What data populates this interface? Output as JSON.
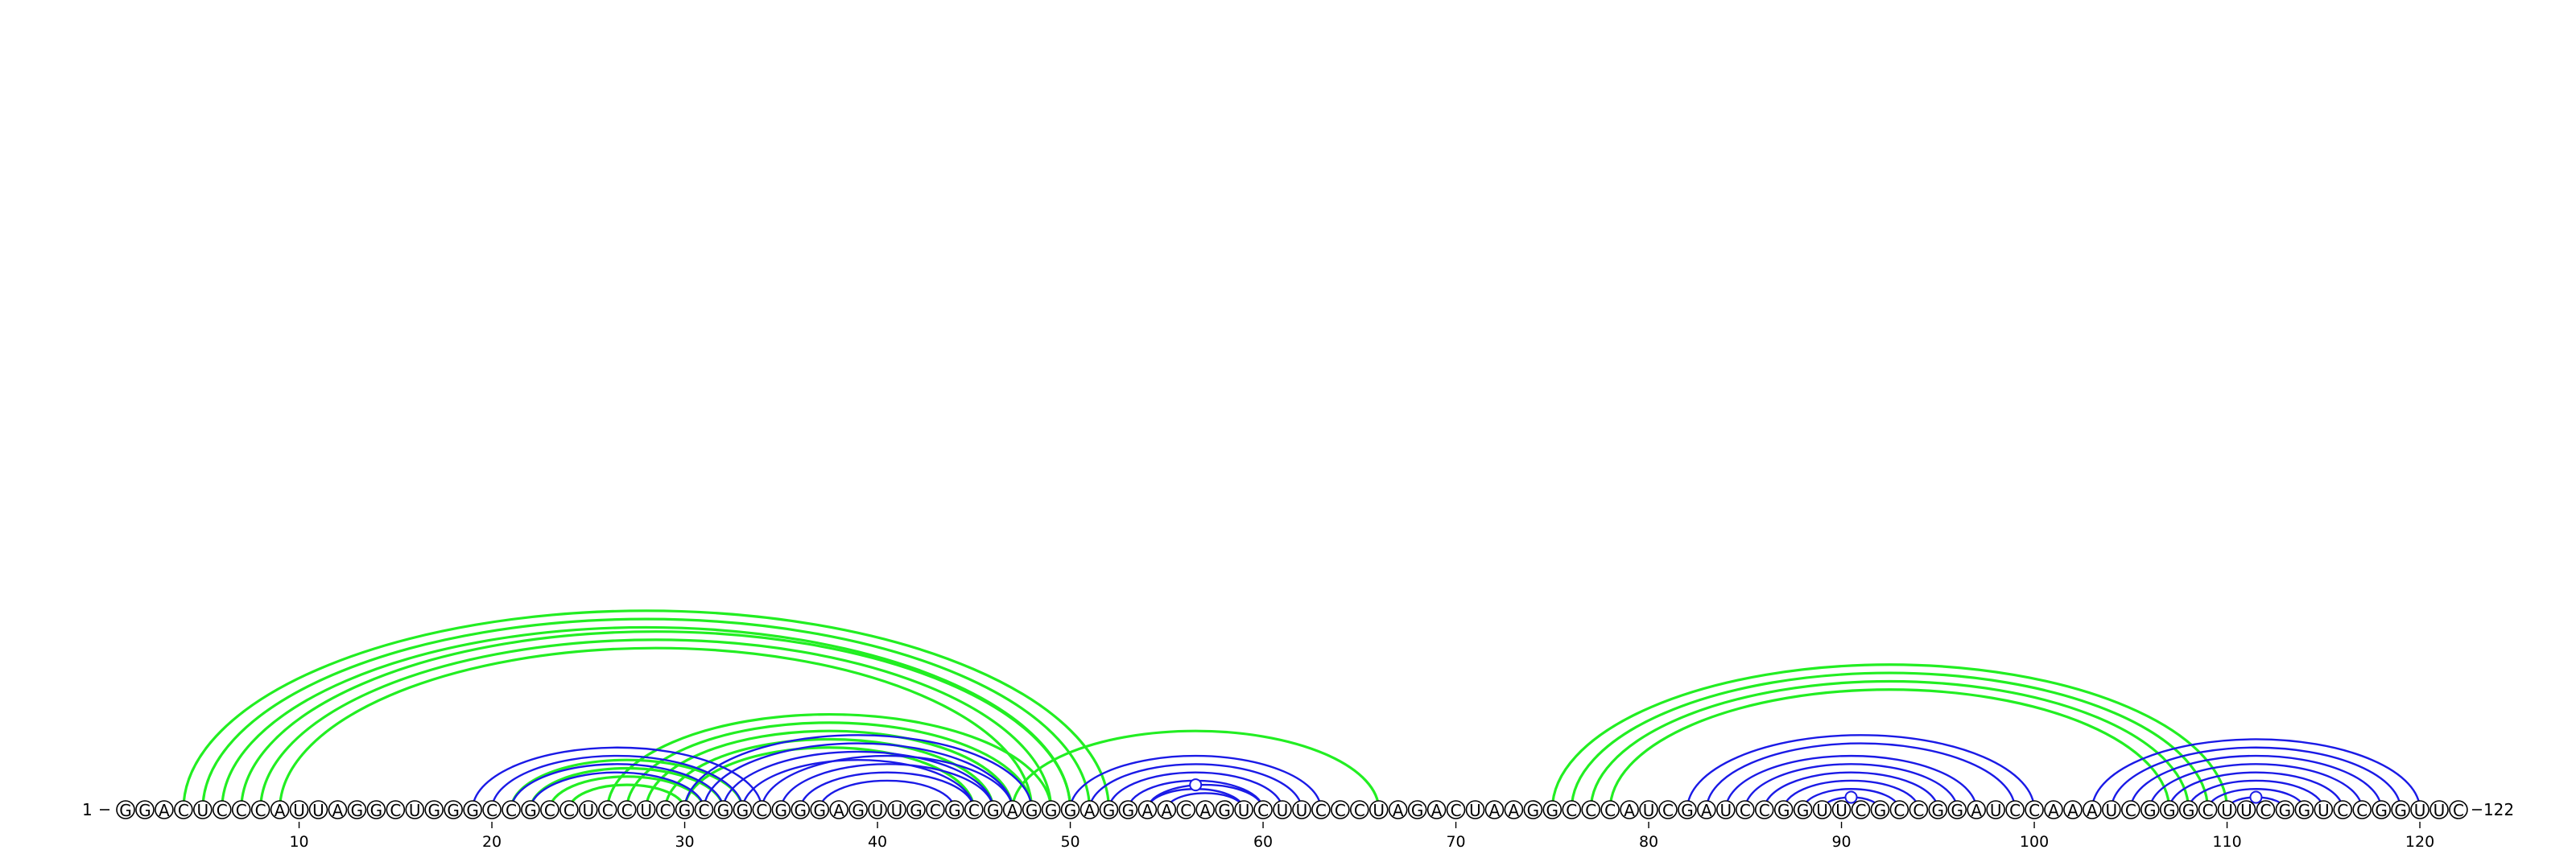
{
  "diagram": {
    "sequence": "GGACUCCCAUUAGGCUGGGCCGCCUCCUCGCGGCGGGAGUUGCGCGAGGGAGGAACAGUCUUCCCUAGACUAAGGCCCAUCGAUCCGGUUCGCCGGAUCCAAAUCGGGCUUCGGUCCGGUUC",
    "start_label": "1",
    "end_label": "122",
    "tick_labels": [
      "10",
      "20",
      "30",
      "40",
      "50",
      "60",
      "70",
      "80",
      "90",
      "100",
      "110",
      "120"
    ],
    "tick_positions": [
      10,
      20,
      30,
      40,
      50,
      60,
      70,
      80,
      90,
      100,
      110,
      120
    ],
    "colors": {
      "green": "#22ee22",
      "blue": "#1a1ae6"
    },
    "blue_helices": [
      {
        "i": 19,
        "j": 34,
        "len": 4
      },
      {
        "i": 30,
        "j": 48,
        "len": 4
      },
      {
        "i": 34,
        "j": 47,
        "len": 4
      },
      {
        "i": 50,
        "j": 63,
        "len": 5
      },
      {
        "i": 54,
        "j": 60,
        "len": 2
      },
      {
        "i": 82,
        "j": 100,
        "len": 2
      },
      {
        "i": 84,
        "j": 97,
        "len": 5
      },
      {
        "i": 89,
        "j": 92,
        "len": 1
      },
      {
        "i": 103,
        "j": 120,
        "len": 3
      },
      {
        "i": 106,
        "j": 117,
        "len": 4
      },
      {
        "i": 110,
        "j": 113,
        "len": 1
      }
    ],
    "green_helices": [
      {
        "i": 4,
        "j": 52,
        "len": 3
      },
      {
        "i": 7,
        "j": 50,
        "len": 3
      },
      {
        "i": 21,
        "j": 33,
        "len": 4
      },
      {
        "i": 26,
        "j": 49,
        "len": 5
      },
      {
        "i": 47,
        "j": 66,
        "len": 1
      },
      {
        "i": 75,
        "j": 110,
        "len": 4
      }
    ],
    "loop_markers": [
      56.5,
      90.5,
      111.5
    ]
  }
}
